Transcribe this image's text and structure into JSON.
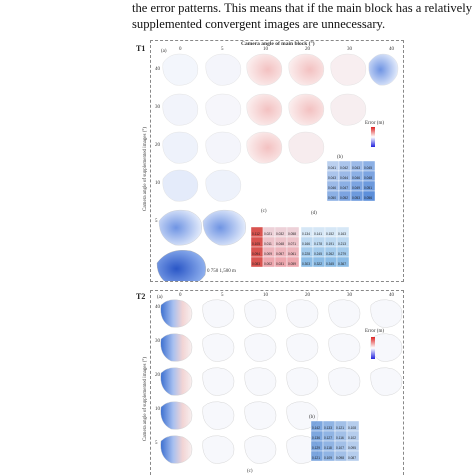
{
  "paragraph": {
    "line1": "the error patterns. This means that if the main block has a relatively h",
    "line2": "supplemented convergent images are unnecessary."
  },
  "figure1": {
    "label": "T1",
    "header": "Camera angle of main block (°)",
    "ylabel": "Camera angle of supplemented images (°)",
    "cols": [
      "0",
      "5",
      "10",
      "20",
      "30",
      "40"
    ],
    "rows": [
      "40",
      "30",
      "20",
      "10",
      "5"
    ],
    "subplot_a": "(a)",
    "subplot_b": "(b)",
    "subplot_c": "(c)",
    "subplot_d": "(d)",
    "colorbar_title": "Error (m)",
    "scale_text": "0  750  1,500 m",
    "cells_b": [
      [
        "0.041",
        "0.042",
        "0.043",
        "0.045"
      ],
      [
        "0.043",
        "0.044",
        "0.046",
        "0.048"
      ],
      [
        "0.046",
        "0.047",
        "0.049",
        "0.051"
      ],
      [
        "0.050",
        "0.052",
        "0.053",
        "0.056"
      ]
    ],
    "cells_c": [
      [
        "0.112",
        "0.021",
        "0.032",
        "0.058"
      ],
      [
        "0.105",
        "0.011",
        "0.048",
        "0.071"
      ],
      [
        "0.094",
        "0.009",
        "0.057",
        "0.061"
      ],
      [
        "0.083",
        "0.002",
        "0.031",
        "0.059"
      ]
    ],
    "cells_d": [
      [
        "0.134",
        "0.141",
        "0.152",
        "0.163"
      ],
      [
        "0.166",
        "0.178",
        "0.191",
        "0.213"
      ],
      [
        "0.228",
        "0.245",
        "0.262",
        "0.279"
      ],
      [
        "0.303",
        "0.322",
        "0.345",
        "0.367"
      ]
    ],
    "axis_ticks": [
      "0",
      "5",
      "10",
      "20",
      "30",
      "40"
    ]
  },
  "figure2": {
    "label": "T2",
    "subplot_a": "(a)",
    "subplot_b": "(b)",
    "subplot_c": "(c)",
    "cols": [
      "0",
      "5",
      "10",
      "20",
      "30",
      "40"
    ],
    "rows": [
      "40",
      "30",
      "20",
      "10",
      "5"
    ],
    "ylabel": "Camera angle of supplemented images (°)",
    "colorbar_title": "Error (m)",
    "cells_b": [
      [
        "0.142",
        "0.133",
        "0.121",
        "0.108"
      ],
      [
        "0.136",
        "0.127",
        "0.116",
        "0.102"
      ],
      [
        "0.129",
        "0.118",
        "0.107",
        "0.095"
      ],
      [
        "0.121",
        "0.109",
        "0.098",
        "0.087"
      ]
    ]
  },
  "colors": {
    "red": "#d9534f",
    "blue": "#3b6fd0",
    "dash": "#888888"
  }
}
